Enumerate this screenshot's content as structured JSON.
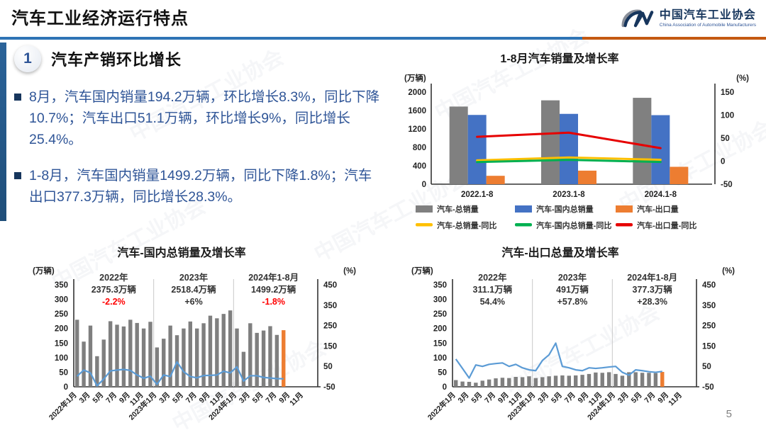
{
  "header": {
    "title": "汽车工业经济运行特点",
    "logo": {
      "org_cn": "中国汽车工业协会",
      "org_en": "China Association of Automobile Manufacturers"
    }
  },
  "watermark_text": "中国汽车工业协会",
  "page_number": "5",
  "section": {
    "number": "1",
    "title": "汽车产销环比增长",
    "bullets": [
      "8月，汽车国内销量194.2万辆，环比增长8.3%，同比下降10.7%；汽车出口51.1万辆，环比增长9%，同比增长25.4%。",
      "1-8月，汽车国内销量1499.2万辆，同比下降1.8%；汽车出口377.3万辆，同比增长28.3%。"
    ]
  },
  "colors": {
    "accent_navy": "#1F4E79",
    "text_blue": "#2F5597",
    "divider_blue": "#2E74B5",
    "divider_orange": "#C45911",
    "bar_gray": "#808080",
    "bar_blue": "#4472C4",
    "bar_orange": "#ED7D31",
    "line_yellow": "#FFC000",
    "line_green": "#00B050",
    "line_red": "#E60000",
    "line_lightblue": "#5B9BD5",
    "annotation_red": "#FF0000"
  },
  "chart_data": [
    {
      "type": "bar",
      "id": "sales-and-growth-1-8",
      "title": "1-8月汽车销量及增长率",
      "left_axis_label": "(万辆)",
      "right_axis_label": "(%)",
      "left_range": [
        0,
        2000
      ],
      "right_range": [
        -50,
        150
      ],
      "left_ticks": [
        0,
        400,
        800,
        1200,
        1600,
        2000
      ],
      "right_ticks": [
        -50,
        0,
        50,
        100,
        150
      ],
      "categories": [
        "2022.1-8",
        "2023.1-8",
        "2024.1-8"
      ],
      "bar_series": [
        {
          "name": "汽车-总销量",
          "color": "#808080",
          "values": [
            1686,
            1821,
            1876
          ]
        },
        {
          "name": "汽车-国内总销量",
          "color": "#4472C4",
          "values": [
            1504,
            1527,
            1499.2
          ]
        },
        {
          "name": "汽车-出口量",
          "color": "#ED7D31",
          "values": [
            182,
            294,
            377.3
          ]
        }
      ],
      "line_series": [
        {
          "name": "汽车-总销量-同比",
          "color": "#FFC000",
          "values": [
            1.7,
            8,
            3
          ]
        },
        {
          "name": "汽车-国内总销量-同比",
          "color": "#00B050",
          "values": [
            -2,
            2.9,
            -1.8
          ]
        },
        {
          "name": "汽车-出口量-同比",
          "color": "#E60000",
          "values": [
            52.8,
            61.9,
            28.3
          ]
        }
      ],
      "legend_position": "bottom"
    },
    {
      "type": "bar",
      "id": "domestic-monthly",
      "title": "汽车-国内总销量及增长率",
      "left_axis_label": "(万辆)",
      "right_axis_label": "(%)",
      "left_range": [
        0,
        350
      ],
      "right_range": [
        -50,
        450
      ],
      "left_ticks": [
        0,
        50,
        100,
        150,
        200,
        250,
        300,
        350
      ],
      "right_ticks": [
        -50,
        50,
        150,
        250,
        350,
        450
      ],
      "slots": 36,
      "separators_after": [
        12,
        24
      ],
      "annotation_slots": [
        6,
        18,
        30
      ],
      "x_tick_labels": [
        "2022年1月",
        "3月",
        "5月",
        "7月",
        "9月",
        "11月",
        "2023年1月",
        "3月",
        "5月",
        "7月",
        "9月",
        "11月",
        "2024年1月",
        "3月",
        "5月",
        "7月",
        "9月",
        "11月"
      ],
      "bar_color": "#7F7F7F",
      "highlight_last": true,
      "highlight_color": "#ED7D31",
      "line_color": "#5B9BD5",
      "bars": [
        230,
        155,
        210,
        105,
        162,
        225,
        213,
        207,
        230,
        219,
        200,
        223,
        135,
        165,
        210,
        177,
        200,
        224,
        200,
        218,
        244,
        235,
        250,
        262,
        200,
        120,
        218,
        185,
        193,
        208,
        178,
        194.2
      ],
      "line": [
        2,
        32,
        18,
        -45,
        -12,
        28,
        32,
        35,
        30,
        8,
        -8,
        2,
        -38,
        8,
        0,
        72,
        24,
        0,
        -6,
        5,
        6,
        8,
        26,
        18,
        48,
        -22,
        4,
        4,
        -4,
        -7,
        -10,
        -10.7
      ],
      "annotations": [
        {
          "lines": [
            "2022年",
            "2375.3万辆",
            "-2.2%"
          ],
          "pct_color": "#FF0000"
        },
        {
          "lines": [
            "2023年",
            "2518.4万辆",
            "+6%"
          ],
          "pct_color": "#333333"
        },
        {
          "lines": [
            "2024年1-8月",
            "1499.2万辆",
            "-1.8%"
          ],
          "pct_color": "#FF0000"
        }
      ]
    },
    {
      "type": "bar",
      "id": "export-monthly",
      "title": "汽车-出口总量及增长率",
      "left_axis_label": "(万辆)",
      "right_axis_label": "(%)",
      "left_range": [
        0,
        350
      ],
      "right_range": [
        -50,
        450
      ],
      "left_ticks": [
        0,
        50,
        100,
        150,
        200,
        250,
        300,
        350
      ],
      "right_ticks": [
        -50,
        50,
        150,
        250,
        350,
        450
      ],
      "slots": 36,
      "separators_after": [
        12,
        24
      ],
      "annotation_slots": [
        6,
        18,
        30
      ],
      "x_tick_labels": [
        "2022年1月",
        "3月",
        "5月",
        "7月",
        "9月",
        "11月",
        "2023年1月",
        "3月",
        "5月",
        "7月",
        "9月",
        "11月",
        "2024年1月",
        "3月",
        "5月",
        "7月",
        "9月",
        "11月"
      ],
      "bar_color": "#7F7F7F",
      "highlight_last": true,
      "highlight_color": "#ED7D31",
      "line_color": "#5B9BD5",
      "bars": [
        23,
        18,
        17,
        14,
        21,
        25,
        29,
        31,
        30,
        34,
        33,
        36,
        30,
        33,
        36,
        38,
        39,
        38,
        39,
        41,
        44,
        49,
        48,
        50,
        44,
        38,
        50,
        50,
        48,
        48,
        47,
        51.1
      ],
      "line": [
        86,
        40,
        -7,
        57,
        50,
        60,
        64,
        67,
        50,
        60,
        43,
        33,
        29,
        79,
        107,
        164,
        50,
        43,
        33,
        29,
        43,
        40,
        43,
        47,
        50,
        21,
        7,
        33,
        29,
        24,
        21,
        25.4
      ],
      "annotations": [
        {
          "lines": [
            "2022年",
            "311.1万辆",
            "54.4%"
          ],
          "pct_color": "#333333"
        },
        {
          "lines": [
            "2023年",
            "491万辆",
            "+57.8%"
          ],
          "pct_color": "#333333"
        },
        {
          "lines": [
            "2024年1-8月",
            "377.3万辆",
            "+28.3%"
          ],
          "pct_color": "#333333"
        }
      ]
    }
  ]
}
